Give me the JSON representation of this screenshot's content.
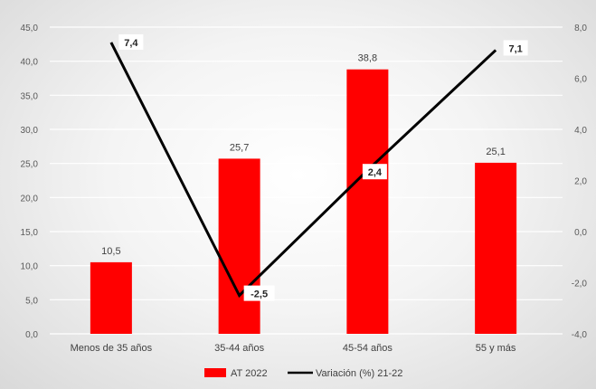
{
  "chart_data": {
    "type": "bar",
    "categories": [
      "Menos de 35 años",
      "35-44 años",
      "45-54 años",
      "55 y más"
    ],
    "series": [
      {
        "name": "AT 2022",
        "type": "bar",
        "axis": "left",
        "values": [
          10.5,
          25.7,
          38.8,
          25.1
        ],
        "labels": [
          "10,5",
          "25,7",
          "38,8",
          "25,1"
        ],
        "color": "#ff0000"
      },
      {
        "name": "Variación (%) 21-22",
        "type": "line",
        "axis": "right",
        "values": [
          7.4,
          -2.5,
          2.4,
          7.1
        ],
        "labels": [
          "7,4",
          "-2,5",
          "2,4",
          "7,1"
        ],
        "color": "#000000"
      }
    ],
    "y_left": {
      "lim": [
        0,
        45
      ],
      "ticks": [
        0,
        5,
        10,
        15,
        20,
        25,
        30,
        35,
        40,
        45
      ],
      "tick_labels": [
        "0,0",
        "5,0",
        "10,0",
        "15,0",
        "20,0",
        "25,0",
        "30,0",
        "35,0",
        "40,0",
        "45,0"
      ]
    },
    "y_right": {
      "lim": [
        -4,
        8
      ],
      "ticks": [
        -4,
        -2,
        0,
        2,
        4,
        6,
        8
      ],
      "tick_labels": [
        "-4,0",
        "-2,0",
        "0,0",
        "2,0",
        "4,0",
        "6,0",
        "8,0"
      ]
    },
    "grid": true,
    "legend_position": "bottom"
  }
}
